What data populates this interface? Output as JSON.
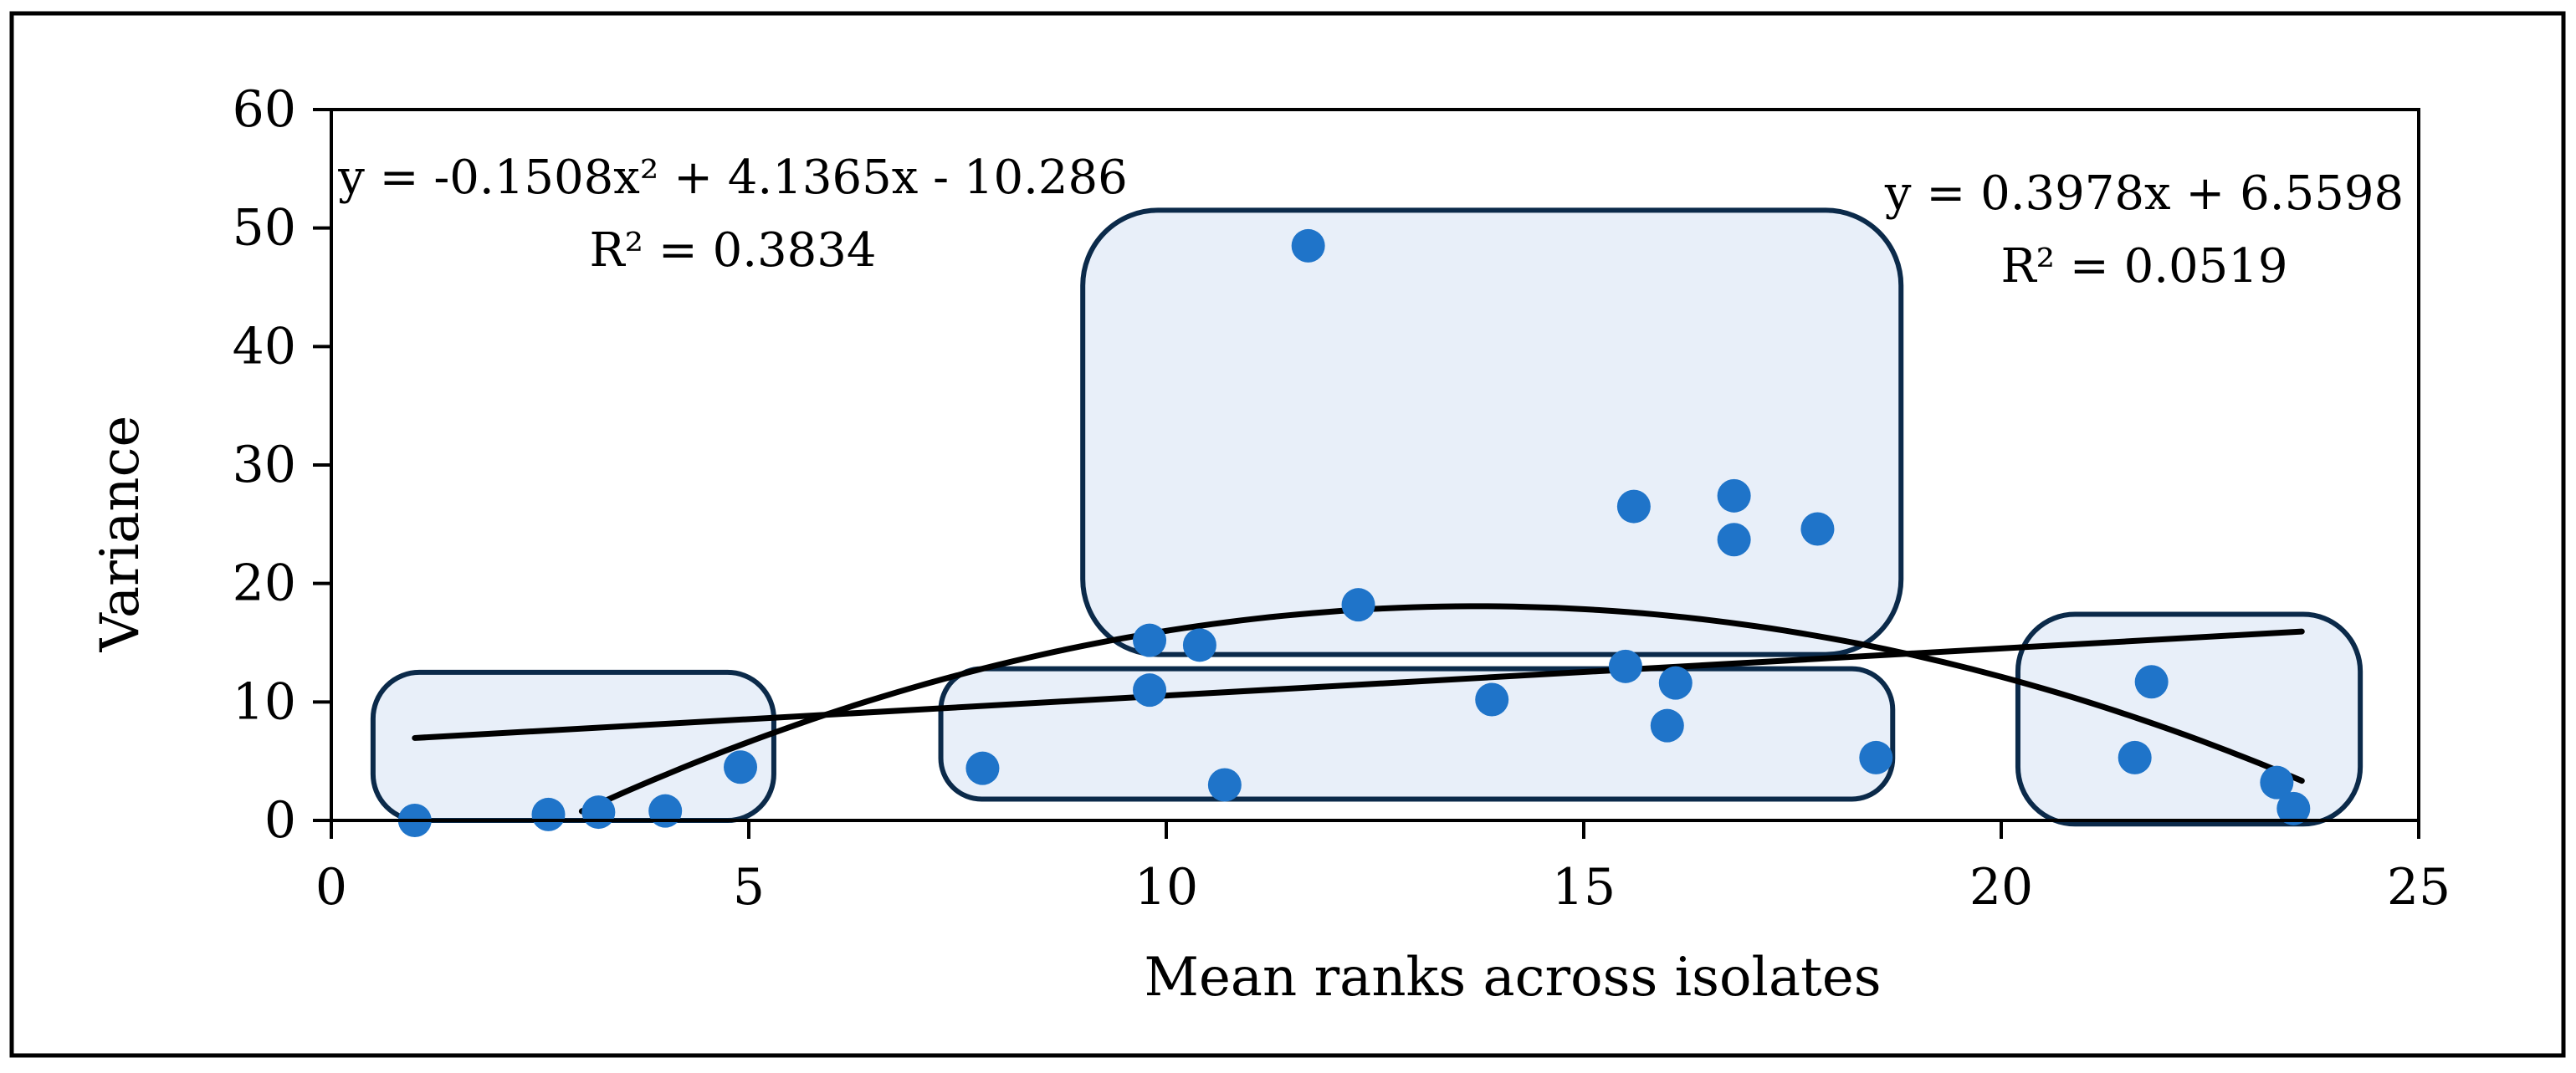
{
  "chart_data": {
    "type": "scatter",
    "title": "",
    "xlabel": "Mean ranks across isolates",
    "ylabel": "Variance",
    "xlim": [
      0,
      25
    ],
    "ylim": [
      0,
      60
    ],
    "x_ticks": [
      "0",
      "5",
      "10",
      "15",
      "20",
      "25"
    ],
    "y_ticks": [
      "0",
      "10",
      "20",
      "30",
      "40",
      "50",
      "60"
    ],
    "grid": false,
    "series": [
      {
        "name": "Variance",
        "color": "#1f74c9",
        "points": [
          {
            "x": 1.0,
            "y": 0.0
          },
          {
            "x": 2.6,
            "y": 0.5
          },
          {
            "x": 3.2,
            "y": 0.7
          },
          {
            "x": 4.0,
            "y": 0.8
          },
          {
            "x": 4.9,
            "y": 4.5
          },
          {
            "x": 7.8,
            "y": 4.4
          },
          {
            "x": 9.8,
            "y": 15.2
          },
          {
            "x": 9.8,
            "y": 11.0
          },
          {
            "x": 10.4,
            "y": 14.8
          },
          {
            "x": 10.7,
            "y": 3.0
          },
          {
            "x": 11.7,
            "y": 48.5
          },
          {
            "x": 12.3,
            "y": 18.2
          },
          {
            "x": 13.9,
            "y": 10.2
          },
          {
            "x": 15.5,
            "y": 13.0
          },
          {
            "x": 15.6,
            "y": 26.5
          },
          {
            "x": 16.0,
            "y": 8.0
          },
          {
            "x": 16.1,
            "y": 11.6
          },
          {
            "x": 16.8,
            "y": 27.4
          },
          {
            "x": 16.8,
            "y": 23.7
          },
          {
            "x": 17.8,
            "y": 24.6
          },
          {
            "x": 18.5,
            "y": 5.3
          },
          {
            "x": 21.6,
            "y": 5.3
          },
          {
            "x": 21.8,
            "y": 11.7
          },
          {
            "x": 23.3,
            "y": 3.2
          },
          {
            "x": 23.5,
            "y": 1.0
          }
        ]
      }
    ],
    "trendlines": [
      {
        "name": "polynomial",
        "kind": "poly2",
        "coefficients": {
          "a": -0.1508,
          "b": 4.1365,
          "c": -10.286
        },
        "x_range": [
          3.0,
          23.6
        ],
        "equation": "y = -0.1508x² + 4.1365x - 10.286",
        "r_squared": "R² = 0.3834",
        "color": "#000000"
      },
      {
        "name": "linear",
        "kind": "linear",
        "coefficients": {
          "slope": 0.3978,
          "intercept": 6.5598
        },
        "x_range": [
          1.0,
          23.6
        ],
        "equation": "y = 0.3978x + 6.5598",
        "r_squared": "R² = 0.0519",
        "color": "#000000"
      }
    ],
    "groups": [
      {
        "name": "group-low-ranks",
        "x_range": [
          0.5,
          5.3
        ],
        "y_range": [
          0.0,
          12.5
        ]
      },
      {
        "name": "group-mid-low-variance",
        "x_range": [
          7.3,
          18.7
        ],
        "y_range": [
          1.8,
          12.8
        ]
      },
      {
        "name": "group-mid-high-variance",
        "x_range": [
          9.0,
          18.8
        ],
        "y_range": [
          14.0,
          51.5
        ]
      },
      {
        "name": "group-high-ranks",
        "x_range": [
          20.2,
          24.3
        ],
        "y_range": [
          -0.3,
          17.4
        ]
      }
    ],
    "group_style": {
      "fill": "#e8eff9",
      "stroke": "#0b2a4a"
    }
  }
}
